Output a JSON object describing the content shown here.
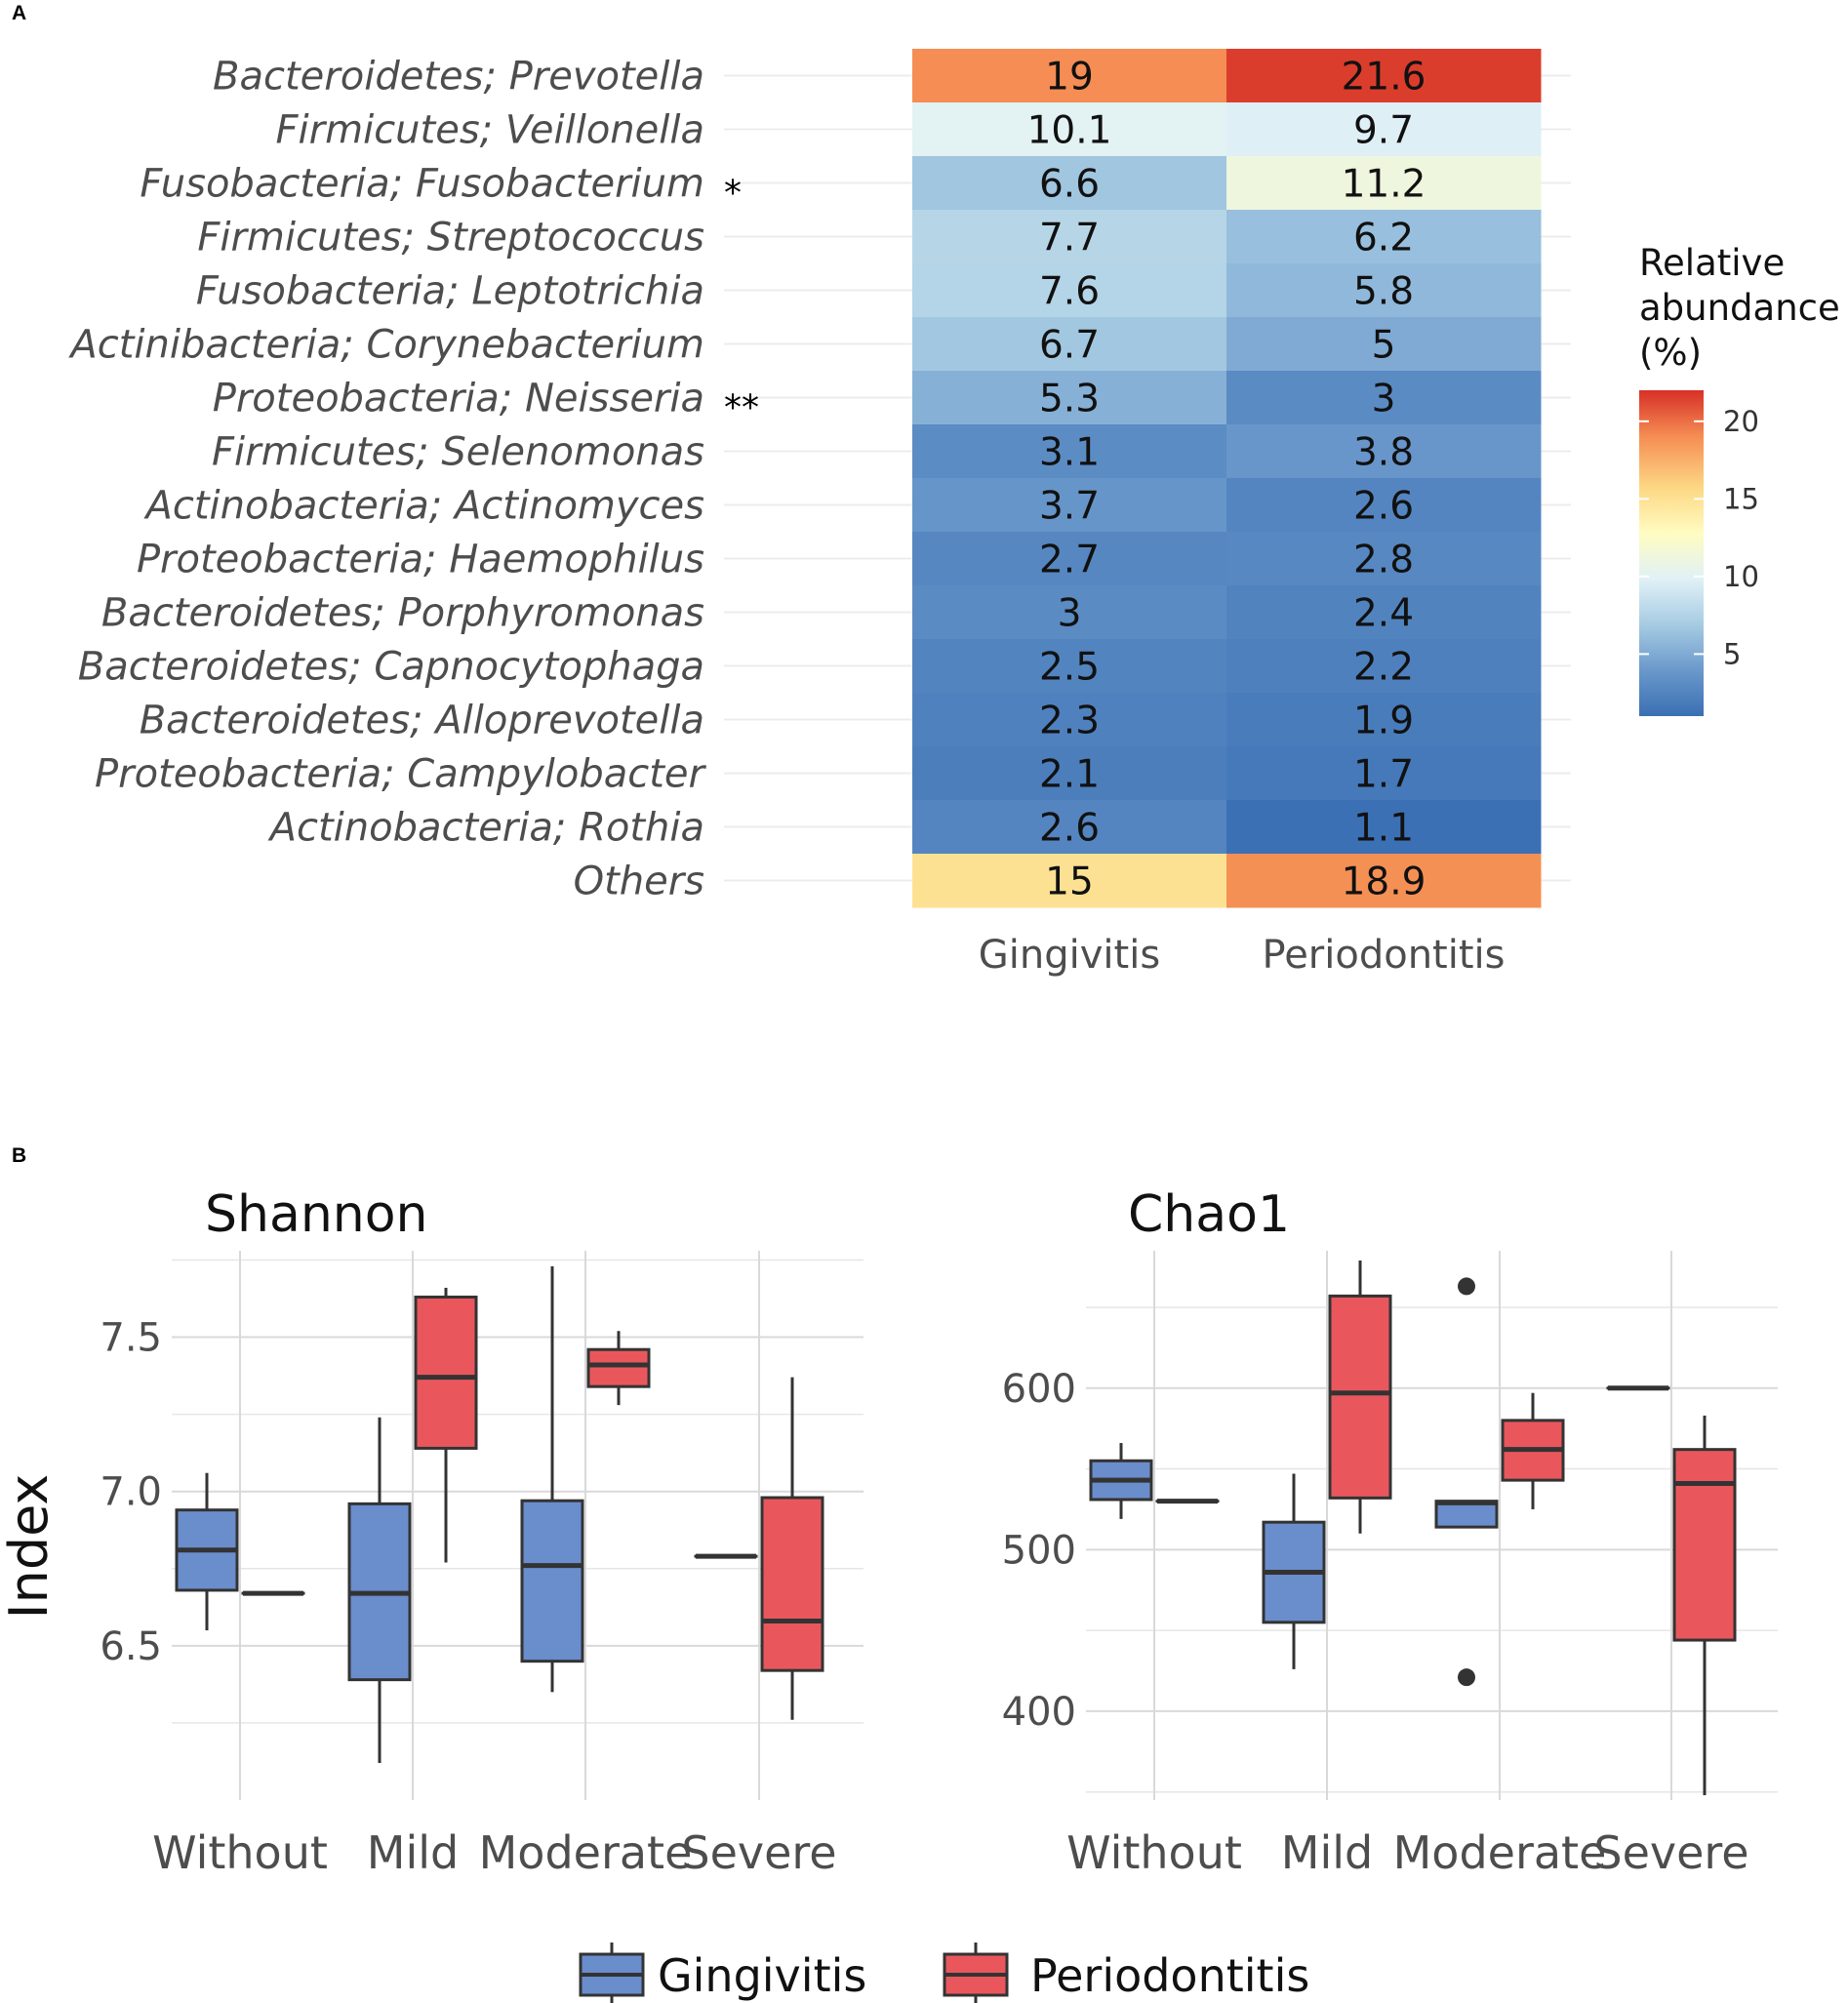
{
  "panels": {
    "a": "A",
    "b": "B"
  },
  "chart_data": [
    {
      "type": "heatmap",
      "title": "",
      "legend_title": [
        "Relative",
        "abundance",
        "(%)"
      ],
      "legend_ticks": [
        5,
        10,
        15,
        20
      ],
      "color_range": [
        1,
        22
      ],
      "columns": [
        "Gingivitis",
        "Periodontitis"
      ],
      "rows": [
        {
          "label": "Bacteroidetes; Prevotella",
          "sig": "",
          "values": [
            19,
            21.6
          ],
          "labels": [
            "19",
            "21.6"
          ]
        },
        {
          "label": "Firmicutes; Veillonella",
          "sig": "",
          "values": [
            10.1,
            9.7
          ],
          "labels": [
            "10.1",
            "9.7"
          ]
        },
        {
          "label": "Fusobacteria; Fusobacterium",
          "sig": "*",
          "values": [
            6.6,
            11.2
          ],
          "labels": [
            "6.6",
            "11.2"
          ]
        },
        {
          "label": "Firmicutes; Streptococcus",
          "sig": "",
          "values": [
            7.7,
            6.2
          ],
          "labels": [
            "7.7",
            "6.2"
          ]
        },
        {
          "label": "Fusobacteria; Leptotrichia",
          "sig": "",
          "values": [
            7.6,
            5.8
          ],
          "labels": [
            "7.6",
            "5.8"
          ]
        },
        {
          "label": "Actinibacteria; Corynebacterium",
          "sig": "",
          "values": [
            6.7,
            5
          ],
          "labels": [
            "6.7",
            "5"
          ]
        },
        {
          "label": "Proteobacteria; Neisseria",
          "sig": "**",
          "values": [
            5.3,
            3
          ],
          "labels": [
            "5.3",
            "3"
          ]
        },
        {
          "label": "Firmicutes; Selenomonas",
          "sig": "",
          "values": [
            3.1,
            3.8
          ],
          "labels": [
            "3.1",
            "3.8"
          ]
        },
        {
          "label": "Actinobacteria; Actinomyces",
          "sig": "",
          "values": [
            3.7,
            2.6
          ],
          "labels": [
            "3.7",
            "2.6"
          ]
        },
        {
          "label": "Proteobacteria; Haemophilus",
          "sig": "",
          "values": [
            2.7,
            2.8
          ],
          "labels": [
            "2.7",
            "2.8"
          ]
        },
        {
          "label": "Bacteroidetes; Porphyromonas",
          "sig": "",
          "values": [
            3,
            2.4
          ],
          "labels": [
            "3",
            "2.4"
          ]
        },
        {
          "label": "Bacteroidetes; Capnocytophaga",
          "sig": "",
          "values": [
            2.5,
            2.2
          ],
          "labels": [
            "2.5",
            "2.2"
          ]
        },
        {
          "label": "Bacteroidetes; Alloprevotella",
          "sig": "",
          "values": [
            2.3,
            1.9
          ],
          "labels": [
            "2.3",
            "1.9"
          ]
        },
        {
          "label": "Proteobacteria; Campylobacter",
          "sig": "",
          "values": [
            2.1,
            1.7
          ],
          "labels": [
            "2.1",
            "1.7"
          ]
        },
        {
          "label": "Actinobacteria; Rothia",
          "sig": "",
          "values": [
            2.6,
            1.1
          ],
          "labels": [
            "2.6",
            "1.1"
          ]
        },
        {
          "label": "Others",
          "sig": "",
          "values": [
            15,
            18.9
          ],
          "labels": [
            "15",
            "18.9"
          ]
        }
      ]
    },
    {
      "type": "box",
      "title": "Shannon",
      "ylabel": "Index",
      "ylim": [
        6.0,
        7.78
      ],
      "yticks": [
        6.5,
        7.0,
        7.5
      ],
      "ytick_labels": [
        "6.5",
        "7.0",
        "7.5"
      ],
      "categories": [
        "Without",
        "Mild",
        "Moderate",
        "Severe"
      ],
      "series": [
        {
          "name": "Gingivitis",
          "boxes": [
            {
              "min": 6.55,
              "q1": 6.68,
              "median": 6.81,
              "q3": 6.94,
              "max": 7.06
            },
            {
              "min": 6.12,
              "q1": 6.39,
              "median": 6.67,
              "q3": 6.96,
              "max": 7.24
            },
            {
              "min": 6.35,
              "q1": 6.45,
              "median": 6.76,
              "q3": 6.97,
              "max": 7.73
            },
            {
              "min": 6.79,
              "q1": 6.79,
              "median": 6.79,
              "q3": 6.79,
              "max": 6.79
            }
          ]
        },
        {
          "name": "Periodontitis",
          "boxes": [
            {
              "min": 6.67,
              "q1": 6.67,
              "median": 6.67,
              "q3": 6.67,
              "max": 6.67
            },
            {
              "min": 6.77,
              "q1": 7.14,
              "median": 7.37,
              "q3": 7.63,
              "max": 7.66
            },
            {
              "min": 7.28,
              "q1": 7.34,
              "median": 7.41,
              "q3": 7.46,
              "max": 7.52
            },
            {
              "min": 6.26,
              "q1": 6.42,
              "median": 6.58,
              "q3": 6.98,
              "max": 7.37
            }
          ]
        }
      ],
      "outliers": []
    },
    {
      "type": "box",
      "title": "Chao1",
      "ylabel": "",
      "ylim": [
        345,
        685
      ],
      "yticks": [
        400,
        500,
        600
      ],
      "ytick_labels": [
        "400",
        "500",
        "600"
      ],
      "categories": [
        "Without",
        "Mild",
        "Moderate",
        "Severe"
      ],
      "series": [
        {
          "name": "Gingivitis",
          "boxes": [
            {
              "min": 519,
              "q1": 531,
              "median": 543,
              "q3": 555,
              "max": 566
            },
            {
              "min": 426,
              "q1": 455,
              "median": 486,
              "q3": 517,
              "max": 547
            },
            {
              "min": 514,
              "q1": 514,
              "median": 529,
              "q3": 530,
              "max": 530
            },
            {
              "min": 600,
              "q1": 600,
              "median": 600,
              "q3": 600,
              "max": 600
            }
          ]
        },
        {
          "name": "Periodontitis",
          "boxes": [
            {
              "min": 530,
              "q1": 530,
              "median": 530,
              "q3": 530,
              "max": 530
            },
            {
              "min": 510,
              "q1": 532,
              "median": 597,
              "q3": 657,
              "max": 679
            },
            {
              "min": 525,
              "q1": 543,
              "median": 562,
              "q3": 580,
              "max": 597
            },
            {
              "min": 348,
              "q1": 444,
              "median": 541,
              "q3": 562,
              "max": 583
            }
          ]
        }
      ],
      "outliers": [
        {
          "category": "Moderate",
          "series": "Gingivitis",
          "value": 663
        },
        {
          "category": "Moderate",
          "series": "Gingivitis",
          "value": 421
        }
      ]
    }
  ],
  "legend": {
    "items": [
      {
        "name": "Gingivitis",
        "color": "#6A8DCC"
      },
      {
        "name": "Periodontitis",
        "color": "#E9575D"
      }
    ]
  },
  "colors": {
    "gingivitis": "#6A8DCC",
    "periodontitis": "#E9575D",
    "grid": "#d9d9d9",
    "scale": [
      "#3A6FB3",
      "#6A98CB",
      "#A6CBE2",
      "#E0F1F7",
      "#FFFCC2",
      "#FDD884",
      "#F58C53",
      "#D73027"
    ]
  }
}
